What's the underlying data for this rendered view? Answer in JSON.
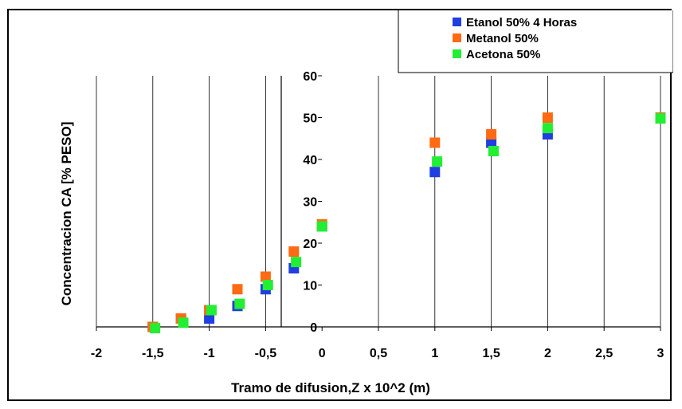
{
  "chart_data": {
    "type": "scatter",
    "title": "",
    "xlabel": "Tramo de difusion,Z x 10^2 (m)",
    "ylabel": "Concentracion CA [% PESO]",
    "xlim": [
      -2,
      3
    ],
    "ylim": [
      0,
      60
    ],
    "x_ticks": [
      {
        "v": -2,
        "label": "-2"
      },
      {
        "v": -1.5,
        "label": "-1,5"
      },
      {
        "v": -1,
        "label": "-1"
      },
      {
        "v": -0.5,
        "label": "-0,5"
      },
      {
        "v": 0,
        "label": "0"
      },
      {
        "v": 0.5,
        "label": "0,5"
      },
      {
        "v": 1,
        "label": "1"
      },
      {
        "v": 1.5,
        "label": "1,5"
      },
      {
        "v": 2,
        "label": "2"
      },
      {
        "v": 2.5,
        "label": "2,5"
      },
      {
        "v": 3,
        "label": "3"
      }
    ],
    "y_ticks": [
      {
        "v": 0,
        "label": "0"
      },
      {
        "v": 10,
        "label": "10"
      },
      {
        "v": 20,
        "label": "20"
      },
      {
        "v": 30,
        "label": "30"
      },
      {
        "v": 40,
        "label": "40"
      },
      {
        "v": 50,
        "label": "50"
      },
      {
        "v": 60,
        "label": "60"
      }
    ],
    "grid": {
      "x": true,
      "y": false
    },
    "legend_position": "top-right",
    "series": [
      {
        "name": "Etanol 50%   4 Horas",
        "color": "#1f3fe0",
        "marker": "square",
        "points": [
          [
            -1.5,
            0
          ],
          [
            -1.25,
            2
          ],
          [
            -1,
            2
          ],
          [
            -0.75,
            5
          ],
          [
            -0.5,
            9
          ],
          [
            -0.25,
            14
          ],
          [
            0,
            24
          ],
          [
            1,
            37
          ],
          [
            1.5,
            44
          ],
          [
            2,
            46
          ],
          [
            3,
            50
          ]
        ]
      },
      {
        "name": "Metanol 50%",
        "color": "#ff6a13",
        "marker": "square",
        "points": [
          [
            -1.5,
            0
          ],
          [
            -1.25,
            2
          ],
          [
            -1,
            4
          ],
          [
            -0.75,
            9
          ],
          [
            -0.5,
            12
          ],
          [
            -0.25,
            18
          ],
          [
            0,
            24.5
          ],
          [
            1,
            44
          ],
          [
            1.5,
            46
          ],
          [
            2,
            50
          ],
          [
            3,
            50
          ]
        ]
      },
      {
        "name": "Acetona 50%",
        "color": "#22ee33",
        "marker": "square",
        "points": [
          [
            -1.48,
            -0.3
          ],
          [
            -1.23,
            1
          ],
          [
            -0.98,
            4
          ],
          [
            -0.73,
            5.5
          ],
          [
            -0.48,
            10
          ],
          [
            -0.23,
            15.5
          ],
          [
            0,
            24
          ],
          [
            1.02,
            39.5
          ],
          [
            1.52,
            42
          ],
          [
            2,
            47.5
          ],
          [
            3,
            49.8
          ]
        ]
      }
    ]
  }
}
